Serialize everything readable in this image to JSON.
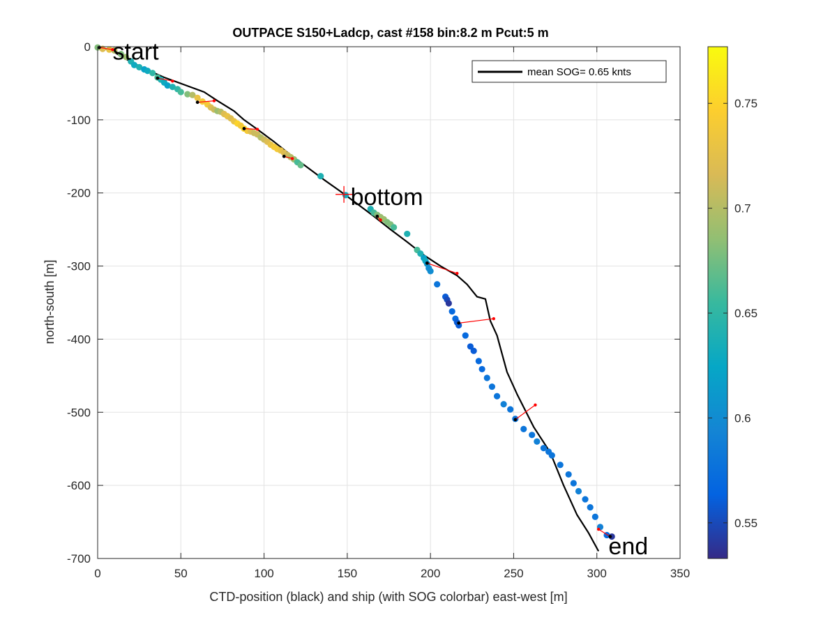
{
  "chart_data": {
    "type": "scatter",
    "title": "OUTPACE S150+Ladcp, cast #158 bin:8.2 m  Pcut:5 m",
    "xlabel": "CTD-position (black) and ship (with SOG colorbar) east-west [m]",
    "ylabel": "north-south [m]",
    "xlim": [
      0,
      350
    ],
    "ylim": [
      -700,
      0
    ],
    "xticks": [
      0,
      50,
      100,
      150,
      200,
      250,
      300,
      350
    ],
    "yticks": [
      0,
      -100,
      -200,
      -300,
      -400,
      -500,
      -600,
      -700
    ],
    "grid": true,
    "legend": {
      "position": "top-right",
      "entries": [
        "mean SOG=  0.65 knts"
      ]
    },
    "colorbar": {
      "range": [
        0.533,
        0.777
      ],
      "ticks": [
        0.55,
        0.6,
        0.65,
        0.7,
        0.75
      ],
      "tick_labels": [
        "0.55",
        "0.6",
        "0.65",
        "0.7",
        "0.75"
      ],
      "colormap": [
        "#352a87",
        "#0363e1",
        "#1485d4",
        "#06a7c6",
        "#38b99e",
        "#92bf73",
        "#d9ba56",
        "#fcce2e",
        "#f9fb0e"
      ]
    },
    "annotations": [
      {
        "text": "start",
        "x": 9,
        "y": -6
      },
      {
        "text": "bottom",
        "x": 152,
        "y": -205
      },
      {
        "text": "end",
        "x": 307,
        "y": -683
      }
    ],
    "bottom_marker": {
      "x": 148,
      "y": -202,
      "color": "#ff0000"
    },
    "series": [
      {
        "name": "mean SOG=  0.65 knts",
        "kind": "ctd_track",
        "color": "#000000",
        "x": [
          0,
          8,
          18,
          28,
          40,
          52,
          64,
          72,
          82,
          88,
          96,
          106,
          116,
          126,
          136,
          146,
          156,
          166,
          176,
          186,
          196,
          206,
          216,
          222,
          228,
          233,
          236,
          240,
          246,
          252,
          262,
          272,
          280,
          288,
          295,
          301
        ],
        "y": [
          0,
          -5,
          -18,
          -30,
          -42,
          -52,
          -62,
          -74,
          -88,
          -100,
          -113,
          -130,
          -148,
          -165,
          -182,
          -198,
          -215,
          -232,
          -250,
          -267,
          -285,
          -300,
          -313,
          -325,
          -342,
          -345,
          -375,
          -395,
          -445,
          -475,
          -520,
          -555,
          -600,
          -640,
          -665,
          -690
        ]
      },
      {
        "name": "",
        "kind": "ship_sog",
        "points": [
          [
            0,
            -1,
            0.68
          ],
          [
            3,
            -3,
            0.72
          ],
          [
            7,
            -4,
            0.73
          ],
          [
            10,
            -5,
            0.7
          ],
          [
            14,
            -10,
            0.68
          ],
          [
            17,
            -14,
            0.69
          ],
          [
            20,
            -20,
            0.64
          ],
          [
            22,
            -25,
            0.63
          ],
          [
            25,
            -28,
            0.64
          ],
          [
            28,
            -31,
            0.62
          ],
          [
            30,
            -33,
            0.63
          ],
          [
            33,
            -36,
            0.65
          ],
          [
            36,
            -42,
            0.66
          ],
          [
            38,
            -45,
            0.64
          ],
          [
            40,
            -49,
            0.63
          ],
          [
            42,
            -53,
            0.62
          ],
          [
            45,
            -55,
            0.64
          ],
          [
            48,
            -58,
            0.65
          ],
          [
            50,
            -62,
            0.66
          ],
          [
            54,
            -65,
            0.68
          ],
          [
            57,
            -66,
            0.7
          ],
          [
            60,
            -70,
            0.73
          ],
          [
            63,
            -75,
            0.74
          ],
          [
            66,
            -79,
            0.74
          ],
          [
            68,
            -83,
            0.72
          ],
          [
            70,
            -86,
            0.71
          ],
          [
            72,
            -88,
            0.69
          ],
          [
            74,
            -89,
            0.7
          ],
          [
            76,
            -92,
            0.72
          ],
          [
            78,
            -95,
            0.73
          ],
          [
            80,
            -98,
            0.72
          ],
          [
            82,
            -102,
            0.73
          ],
          [
            84,
            -105,
            0.75
          ],
          [
            86,
            -108,
            0.74
          ],
          [
            88,
            -112,
            0.75
          ],
          [
            90,
            -115,
            0.74
          ],
          [
            92,
            -116,
            0.72
          ],
          [
            94,
            -118,
            0.71
          ],
          [
            96,
            -120,
            0.71
          ],
          [
            98,
            -124,
            0.7
          ],
          [
            100,
            -127,
            0.71
          ],
          [
            102,
            -130,
            0.72
          ],
          [
            104,
            -134,
            0.73
          ],
          [
            106,
            -137,
            0.74
          ],
          [
            108,
            -140,
            0.74
          ],
          [
            110,
            -142,
            0.73
          ],
          [
            112,
            -145,
            0.72
          ],
          [
            114,
            -148,
            0.71
          ],
          [
            116,
            -151,
            0.7
          ],
          [
            118,
            -154,
            0.69
          ],
          [
            120,
            -158,
            0.66
          ],
          [
            122,
            -162,
            0.67
          ],
          [
            134,
            -177,
            0.64
          ],
          [
            149,
            -203,
            0.63
          ],
          [
            164,
            -222,
            0.64
          ],
          [
            166,
            -227,
            0.66
          ],
          [
            168,
            -230,
            0.68
          ],
          [
            170,
            -233,
            0.69
          ],
          [
            172,
            -236,
            0.69
          ],
          [
            174,
            -240,
            0.68
          ],
          [
            176,
            -243,
            0.68
          ],
          [
            178,
            -247,
            0.66
          ],
          [
            186,
            -256,
            0.64
          ],
          [
            192,
            -278,
            0.66
          ],
          [
            194,
            -283,
            0.64
          ],
          [
            196,
            -289,
            0.62
          ],
          [
            197,
            -293,
            0.63
          ],
          [
            198,
            -297,
            0.61
          ],
          [
            199,
            -303,
            0.6
          ],
          [
            200,
            -307,
            0.6
          ],
          [
            204,
            -325,
            0.58
          ],
          [
            209,
            -342,
            0.56
          ],
          [
            210,
            -346,
            0.55
          ],
          [
            211,
            -351,
            0.54
          ],
          [
            213,
            -362,
            0.57
          ],
          [
            215,
            -372,
            0.57
          ],
          [
            216,
            -377,
            0.56
          ],
          [
            217,
            -381,
            0.56
          ],
          [
            221,
            -395,
            0.57
          ],
          [
            224,
            -410,
            0.56
          ],
          [
            226,
            -416,
            0.56
          ],
          [
            229,
            -430,
            0.57
          ],
          [
            231,
            -441,
            0.57
          ],
          [
            234,
            -453,
            0.58
          ],
          [
            237,
            -465,
            0.58
          ],
          [
            240,
            -478,
            0.58
          ],
          [
            244,
            -489,
            0.59
          ],
          [
            248,
            -496,
            0.58
          ],
          [
            251,
            -509,
            0.58
          ],
          [
            256,
            -523,
            0.58
          ],
          [
            261,
            -531,
            0.58
          ],
          [
            264,
            -540,
            0.59
          ],
          [
            268,
            -549,
            0.58
          ],
          [
            271,
            -554,
            0.58
          ],
          [
            273,
            -559,
            0.58
          ],
          [
            278,
            -572,
            0.58
          ],
          [
            283,
            -585,
            0.58
          ],
          [
            286,
            -597,
            0.58
          ],
          [
            289,
            -608,
            0.59
          ],
          [
            293,
            -619,
            0.58
          ],
          [
            296,
            -630,
            0.58
          ],
          [
            299,
            -643,
            0.58
          ],
          [
            302,
            -657,
            0.59
          ],
          [
            306,
            -668,
            0.57
          ],
          [
            309,
            -670,
            0.54
          ]
        ]
      },
      {
        "name": "",
        "kind": "offset_links",
        "color": "#ff0000",
        "segments": [
          [
            [
              1,
              -1
            ],
            [
              9,
              -4
            ]
          ],
          [
            [
              36,
              -43
            ],
            [
              45,
              -47
            ]
          ],
          [
            [
              60,
              -76
            ],
            [
              70,
              -74
            ]
          ],
          [
            [
              88,
              -112
            ],
            [
              96,
              -113
            ]
          ],
          [
            [
              112,
              -150
            ],
            [
              117,
              -153
            ]
          ],
          [
            [
              168,
              -232
            ],
            [
              170,
              -237
            ]
          ],
          [
            [
              198,
              -296
            ],
            [
              216,
              -310
            ]
          ],
          [
            [
              217,
              -378
            ],
            [
              238,
              -372
            ]
          ],
          [
            [
              251,
              -510
            ],
            [
              263,
              -490
            ]
          ],
          [
            [
              308,
              -670
            ],
            [
              301,
              -660
            ]
          ]
        ]
      }
    ]
  }
}
